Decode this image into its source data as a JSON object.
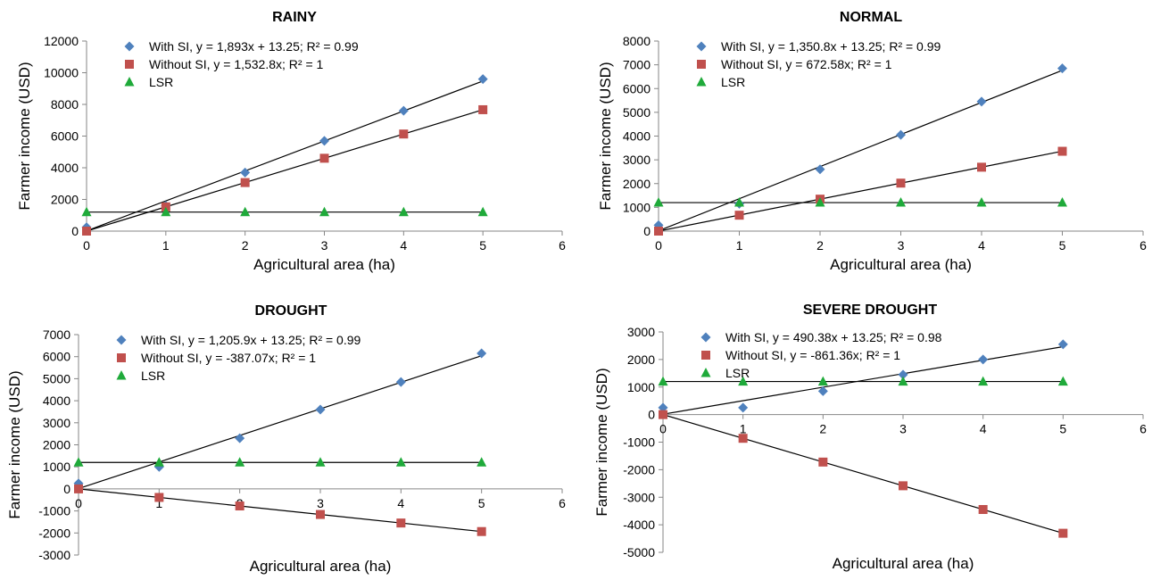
{
  "chart_data": [
    {
      "type": "scatter",
      "title": "RAINY",
      "xlabel": "Agricultural area (ha)",
      "ylabel": "Farmer income (USD)",
      "xlim": [
        0,
        6
      ],
      "ylim": [
        0,
        12000
      ],
      "xticks": [
        0,
        1,
        2,
        3,
        4,
        5,
        6
      ],
      "yticks": [
        0,
        2000,
        4000,
        6000,
        8000,
        10000,
        12000
      ],
      "grid": false,
      "legend_position": "top-left inside",
      "series": [
        {
          "name": "With SI, y = 1,893x + 13.25; R² = 0.99",
          "marker": "diamond",
          "color": "#4F81BD",
          "x": [
            0,
            1,
            2,
            3,
            4,
            5
          ],
          "y": [
            250,
            1600,
            3700,
            5700,
            7600,
            9600
          ],
          "trend": [
            1893,
            13.25
          ]
        },
        {
          "name": "Without SI, y = 1,532.8x; R² = 1",
          "marker": "square",
          "color": "#C0504D",
          "x": [
            0,
            1,
            2,
            3,
            4,
            5
          ],
          "y": [
            0,
            1530,
            3065,
            4600,
            6130,
            7665
          ],
          "trend": [
            1532.8,
            0
          ]
        },
        {
          "name": "LSR",
          "marker": "triangle",
          "color": "#1FAA3A",
          "x": [
            0,
            1,
            2,
            3,
            4,
            5
          ],
          "y": [
            1200,
            1200,
            1200,
            1200,
            1200,
            1200
          ],
          "trend": [
            0,
            1200
          ]
        }
      ]
    },
    {
      "type": "scatter",
      "title": "NORMAL",
      "xlabel": "Agricultural area (ha)",
      "ylabel": "Farmer income (USD)",
      "xlim": [
        0,
        6
      ],
      "ylim": [
        0,
        8000
      ],
      "xticks": [
        0,
        1,
        2,
        3,
        4,
        5,
        6
      ],
      "yticks": [
        0,
        1000,
        2000,
        3000,
        4000,
        5000,
        6000,
        7000,
        8000
      ],
      "grid": false,
      "legend_position": "top-left inside",
      "series": [
        {
          "name": "With SI, y = 1,350.8x + 13.25; R² = 0.99",
          "marker": "diamond",
          "color": "#4F81BD",
          "x": [
            0,
            1,
            2,
            3,
            4,
            5
          ],
          "y": [
            250,
            1150,
            2600,
            4050,
            5450,
            6850
          ],
          "trend": [
            1350.8,
            13.25
          ]
        },
        {
          "name": "Without SI, y = 672.58x; R² = 1",
          "marker": "square",
          "color": "#C0504D",
          "x": [
            0,
            1,
            2,
            3,
            4,
            5
          ],
          "y": [
            0,
            670,
            1345,
            2020,
            2690,
            3360
          ],
          "trend": [
            672.58,
            0
          ]
        },
        {
          "name": "LSR",
          "marker": "triangle",
          "color": "#1FAA3A",
          "x": [
            0,
            1,
            2,
            3,
            4,
            5
          ],
          "y": [
            1200,
            1200,
            1200,
            1200,
            1200,
            1200
          ],
          "trend": [
            0,
            1200
          ]
        }
      ]
    },
    {
      "type": "scatter",
      "title": "DROUGHT",
      "xlabel": "Agricultural area (ha)",
      "ylabel": "Farmer income (USD)",
      "xlim": [
        0,
        6
      ],
      "ylim": [
        -3000,
        7000
      ],
      "xticks": [
        0,
        1,
        2,
        3,
        4,
        5,
        6
      ],
      "yticks": [
        -3000,
        -2000,
        -1000,
        0,
        1000,
        2000,
        3000,
        4000,
        5000,
        6000,
        7000
      ],
      "grid": false,
      "legend_position": "top-left inside",
      "series": [
        {
          "name": "With SI, y = 1,205.9x + 13.25; R² = 0.99",
          "marker": "diamond",
          "color": "#4F81BD",
          "x": [
            0,
            1,
            2,
            3,
            4,
            5
          ],
          "y": [
            250,
            1000,
            2300,
            3600,
            4850,
            6150
          ],
          "trend": [
            1205.9,
            13.25
          ]
        },
        {
          "name": "Without SI, y = -387.07x; R² = 1",
          "marker": "square",
          "color": "#C0504D",
          "x": [
            0,
            1,
            2,
            3,
            4,
            5
          ],
          "y": [
            0,
            -387,
            -774,
            -1161,
            -1548,
            -1935
          ],
          "trend": [
            -387.07,
            0
          ]
        },
        {
          "name": "LSR",
          "marker": "triangle",
          "color": "#1FAA3A",
          "x": [
            0,
            1,
            2,
            3,
            4,
            5
          ],
          "y": [
            1200,
            1200,
            1200,
            1200,
            1200,
            1200
          ],
          "trend": [
            0,
            1200
          ]
        }
      ]
    },
    {
      "type": "scatter",
      "title": "SEVERE DROUGHT",
      "xlabel": "Agricultural area (ha)",
      "ylabel": "Farmer income (USD)",
      "xlim": [
        0,
        6
      ],
      "ylim": [
        -5000,
        3000
      ],
      "xticks": [
        0,
        1,
        2,
        3,
        4,
        5,
        6
      ],
      "yticks": [
        -5000,
        -4000,
        -3000,
        -2000,
        -1000,
        0,
        1000,
        2000,
        3000
      ],
      "grid": false,
      "legend_position": "top-left inside",
      "series": [
        {
          "name": "With SI, y = 490.38x + 13.25; R² = 0.98",
          "marker": "diamond",
          "color": "#4F81BD",
          "x": [
            0,
            1,
            2,
            3,
            4,
            5
          ],
          "y": [
            250,
            250,
            850,
            1450,
            2000,
            2550
          ],
          "trend": [
            490.38,
            13.25
          ]
        },
        {
          "name": "Without SI, y = -861.36x; R² = 1",
          "marker": "square",
          "color": "#C0504D",
          "x": [
            0,
            1,
            2,
            3,
            4,
            5
          ],
          "y": [
            0,
            -861,
            -1723,
            -2584,
            -3445,
            -4307
          ],
          "trend": [
            -861.36,
            0
          ]
        },
        {
          "name": "LSR",
          "marker": "triangle",
          "color": "#1FAA3A",
          "x": [
            0,
            1,
            2,
            3,
            4,
            5
          ],
          "y": [
            1200,
            1200,
            1200,
            1200,
            1200,
            1200
          ],
          "trend": [
            0,
            1200
          ]
        }
      ]
    }
  ]
}
